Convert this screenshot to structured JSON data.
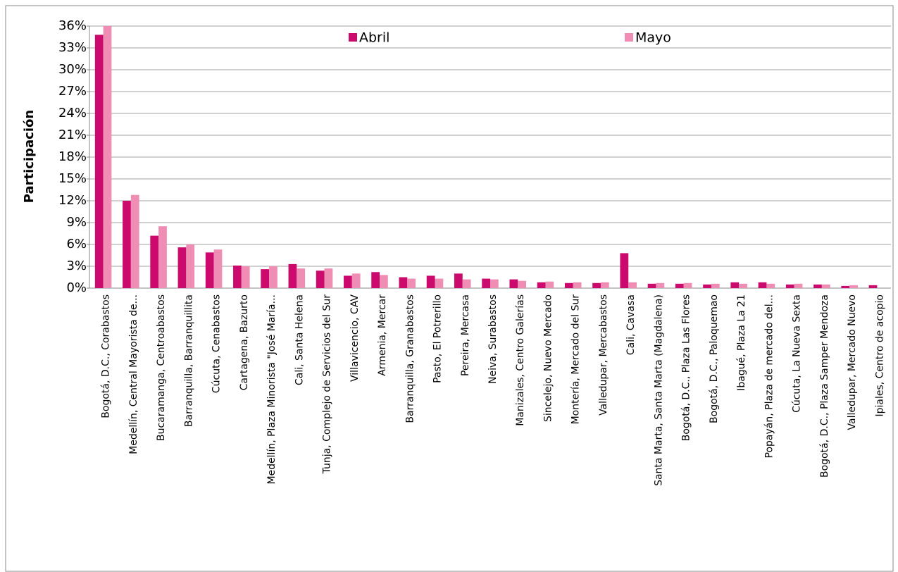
{
  "chart_data": {
    "type": "bar",
    "y_label": "Participación",
    "categories": [
      "Bogotá, D.C.,  Corabastos",
      "Medellín,  Central Mayorista de...",
      "Bucaramanga,  Centroabastos",
      "Barranquilla,  Barranquillita",
      "Cúcuta,  Cenabastos",
      "Cartagena,  Bazurto",
      "Medellín,  Plaza Minorista \"José María...",
      "Cali,  Santa Helena",
      "Tunja,  Complejo de Servicios del Sur",
      "Villavicencio,  CAV",
      "Armenia,  Mercar",
      "Barranquilla,  Granabastos",
      "Pasto,  El Potrerillo",
      "Pereira,  Mercasa",
      "Neiva,  Surabastos",
      "Manizales,  Centro Galerías",
      "Sincelejo,  Nuevo Mercado",
      "Montería,  Mercado del Sur",
      "Valledupar,  Mercabastos",
      "Cali,  Cavasa",
      "Santa Marta, Santa Marta (Magdalena)",
      "Bogotá, D.C.,  Plaza Las Flores",
      "Bogotá, D.C.,  Paloquemao",
      "Ibagué,  Plaza La 21",
      "Popayán,  Plaza de mercado del...",
      "Cúcuta,  La Nueva Sexta",
      "Bogotá, D.C.,  Plaza Samper Mendoza",
      "Valledupar,  Mercado Nuevo",
      "Ipiales,  Centro de acopio"
    ],
    "series": [
      {
        "name": "Abril",
        "color": "#cc0a6e",
        "values": [
          34.8,
          12.0,
          7.2,
          5.6,
          4.9,
          3.1,
          2.6,
          3.3,
          2.4,
          1.7,
          2.2,
          1.5,
          1.7,
          2.0,
          1.3,
          1.2,
          0.8,
          0.7,
          0.7,
          4.8,
          0.6,
          0.6,
          0.5,
          0.8,
          0.8,
          0.5,
          0.5,
          0.3,
          0.4
        ]
      },
      {
        "name": "Mayo",
        "color": "#f08db5",
        "values": [
          36.0,
          12.8,
          8.5,
          6.0,
          5.3,
          3.0,
          3.0,
          2.7,
          2.7,
          2.0,
          1.8,
          1.3,
          1.3,
          1.2,
          1.2,
          1.0,
          0.9,
          0.8,
          0.8,
          0.8,
          0.7,
          0.7,
          0.6,
          0.6,
          0.6,
          0.6,
          0.5,
          0.4,
          0
        ]
      }
    ],
    "ylim": [
      0,
      36
    ],
    "yticks": [
      {
        "value": 0,
        "label": "0%"
      },
      {
        "value": 3,
        "label": "3%"
      },
      {
        "value": 6,
        "label": "6%"
      },
      {
        "value": 9,
        "label": "9%"
      },
      {
        "value": 12,
        "label": "12%"
      },
      {
        "value": 15,
        "label": "15%"
      },
      {
        "value": 18,
        "label": "18%"
      },
      {
        "value": 21,
        "label": "21%"
      },
      {
        "value": 24,
        "label": "24%"
      },
      {
        "value": 27,
        "label": "27%"
      },
      {
        "value": 30,
        "label": "30%"
      },
      {
        "value": 33,
        "label": "33%"
      },
      {
        "value": 36,
        "label": "36%"
      }
    ],
    "grid": true
  }
}
